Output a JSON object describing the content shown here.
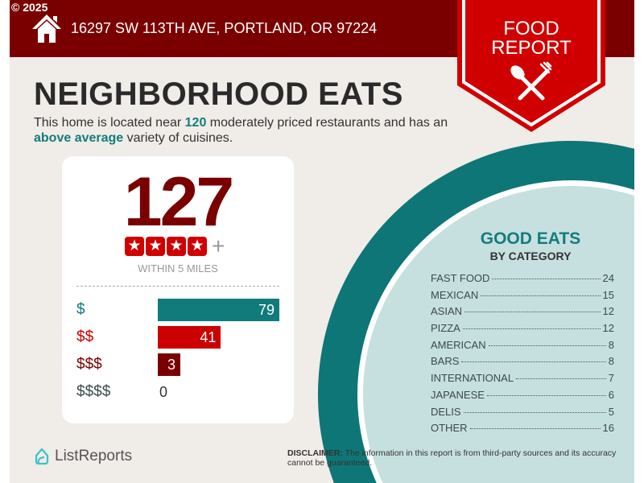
{
  "copyright": "© 2025",
  "header": {
    "address": "16297 SW 113TH AVE, PORTLAND, OR 97224",
    "icon": "house-icon"
  },
  "badge": {
    "line1": "FOOD",
    "line2": "REPORT",
    "icon": "spoon-fork-icon"
  },
  "title": "NEIGHBORHOOD EATS",
  "description": {
    "pre": "This home is located near ",
    "count": "120",
    "mid": " moderately priced restaurants and has an ",
    "variety": "above average",
    "post": " variety of cuisines."
  },
  "summary": {
    "count": "127",
    "stars": 4,
    "plus": "+",
    "within": "WITHIN 5 MILES"
  },
  "price_levels": [
    {
      "label": "$",
      "value": 79,
      "color": "#107b7b"
    },
    {
      "label": "$$",
      "value": 41,
      "color": "#cc0000"
    },
    {
      "label": "$$$",
      "value": 3,
      "color": "#7a0000"
    },
    {
      "label": "$$$$",
      "value": 0,
      "color": "#3a4a4a"
    }
  ],
  "categories": {
    "title": "GOOD EATS",
    "subtitle": "BY CATEGORY",
    "items": [
      {
        "name": "FAST FOOD",
        "count": "24"
      },
      {
        "name": "MEXICAN",
        "count": "15"
      },
      {
        "name": "ASIAN",
        "count": "12"
      },
      {
        "name": "PIZZA",
        "count": "12"
      },
      {
        "name": "AMERICAN",
        "count": "8"
      },
      {
        "name": "BARS",
        "count": "8"
      },
      {
        "name": "INTERNATIONAL",
        "count": "7"
      },
      {
        "name": "JAPANESE",
        "count": "6"
      },
      {
        "name": "DELIS",
        "count": "5"
      },
      {
        "name": "OTHER",
        "count": "16"
      }
    ]
  },
  "footer": {
    "logo": "ListReports",
    "disclaimer_label": "DISCLAIMER:",
    "disclaimer": " The information in this report is from third-party sources and its accuracy cannot be guaranteed."
  },
  "colors": {
    "header": "#7a0000",
    "accent": "#147c7c",
    "badge": "#d10000",
    "background": "#f0ece8"
  }
}
